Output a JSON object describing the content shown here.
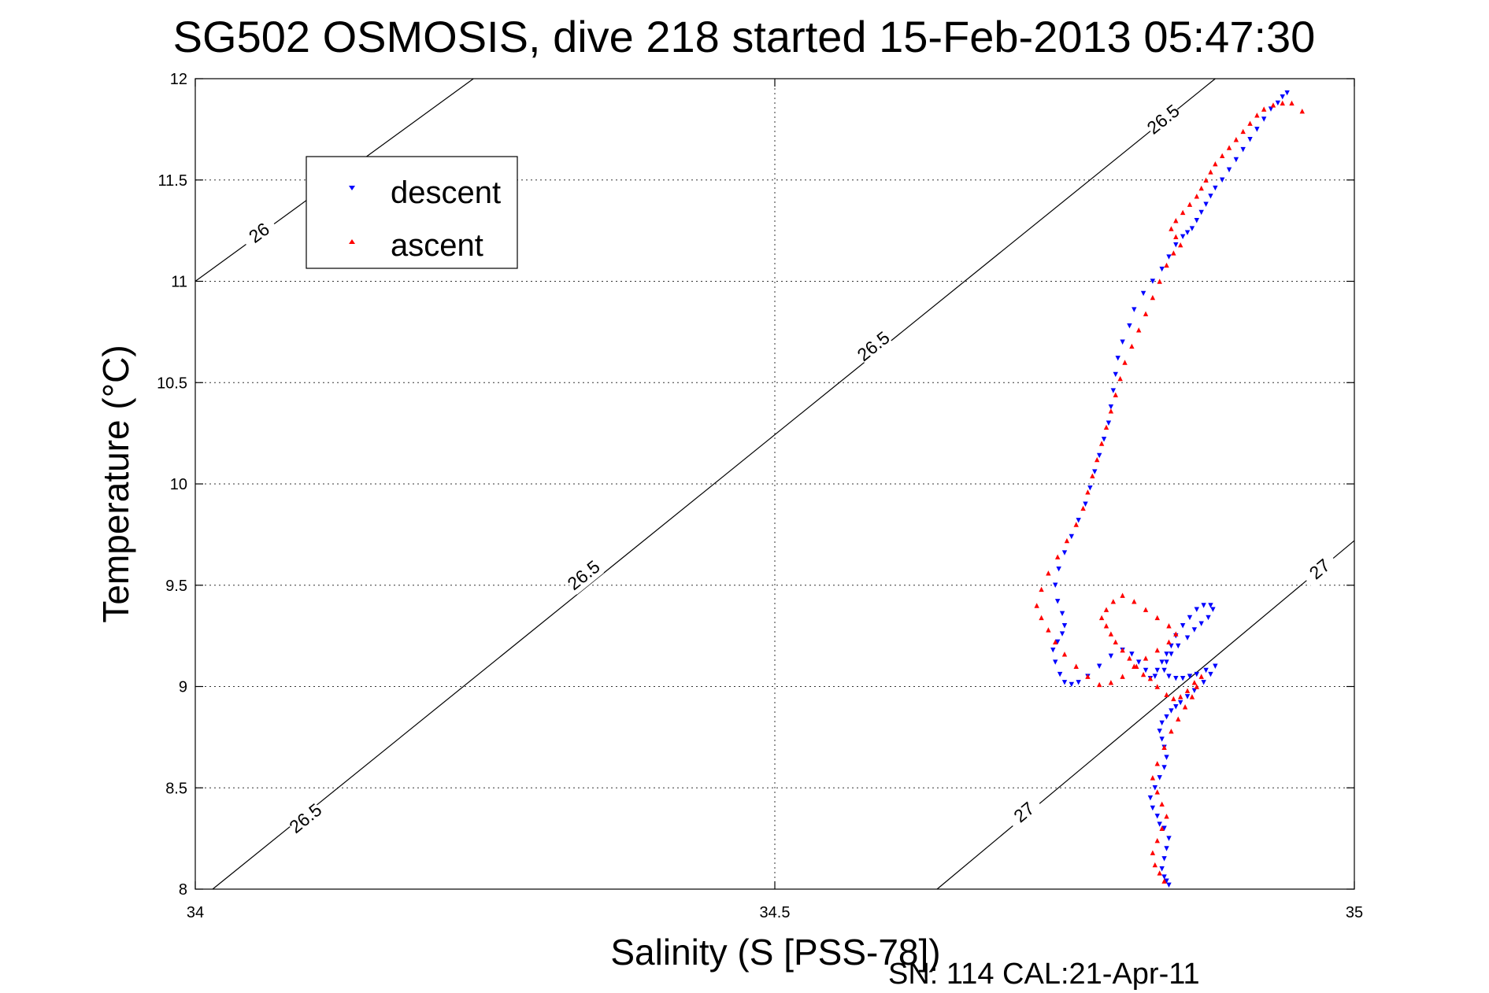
{
  "chart_data": {
    "type": "scatter",
    "title": "SG502 OSMOSIS, dive 218 started 15-Feb-2013 05:47:30",
    "xlabel": "Salinity (S [PSS-78])",
    "ylabel": "Temperature (°C)",
    "footer": "SN: 114  CAL:21-Apr-11",
    "xlim": [
      34,
      35
    ],
    "ylim": [
      8,
      12
    ],
    "xticks": [
      "34",
      "34.5",
      "35"
    ],
    "yticks": [
      "8",
      "8.5",
      "9",
      "9.5",
      "10",
      "10.5",
      "11",
      "11.5",
      "12"
    ],
    "grid": true,
    "legend": {
      "placement": "top-left",
      "entries": [
        {
          "label": "descent",
          "color": "#0000ff",
          "marker": "triangle-down"
        },
        {
          "label": "ascent",
          "color": "#ff0000",
          "marker": "triangle-up"
        }
      ]
    },
    "contours": [
      {
        "level": "26",
        "points": [
          [
            34.0,
            11.0
          ],
          [
            34.24,
            12.0
          ]
        ],
        "labels": [
          {
            "x": 34.055,
            "y": 11.24
          }
        ]
      },
      {
        "level": "26.5",
        "points": [
          [
            34.015,
            8.0
          ],
          [
            34.88,
            12.0
          ]
        ],
        "labels": [
          {
            "x": 34.095,
            "y": 8.35
          },
          {
            "x": 34.335,
            "y": 9.55
          },
          {
            "x": 34.585,
            "y": 10.68
          },
          {
            "x": 34.835,
            "y": 11.8
          }
        ]
      },
      {
        "level": "27",
        "points": [
          [
            34.64,
            8.0
          ],
          [
            35.0,
            9.72
          ]
        ],
        "labels": [
          {
            "x": 34.715,
            "y": 8.38
          },
          {
            "x": 34.97,
            "y": 9.58
          }
        ]
      }
    ],
    "series": [
      {
        "name": "descent",
        "color": "#0000ff",
        "marker": "triangle-down",
        "x": [
          34.84,
          34.838,
          34.836,
          34.834,
          34.836,
          34.838,
          34.84,
          34.836,
          34.832,
          34.83,
          34.826,
          34.824,
          34.828,
          34.832,
          34.836,
          34.838,
          34.836,
          34.834,
          34.832,
          34.834,
          34.838,
          34.842,
          34.846,
          34.85,
          34.856,
          34.862,
          34.87,
          34.876,
          34.88,
          34.872,
          34.864,
          34.858,
          34.852,
          34.846,
          34.84,
          34.836,
          34.838,
          34.842,
          34.848,
          34.856,
          34.862,
          34.868,
          34.874,
          34.878,
          34.876,
          34.87,
          34.864,
          34.858,
          34.852,
          34.846,
          34.842,
          34.838,
          34.834,
          34.83,
          34.828,
          34.824,
          34.82,
          34.814,
          34.808,
          34.8,
          34.79,
          34.78,
          34.77,
          34.762,
          34.756,
          34.75,
          34.746,
          34.742,
          34.74,
          34.744,
          34.748,
          34.75,
          34.748,
          34.744,
          34.742,
          34.745,
          34.75,
          34.756,
          34.762,
          34.768,
          34.772,
          34.776,
          34.78,
          34.784,
          34.788,
          34.79,
          34.792,
          34.794,
          34.796,
          34.8,
          34.806,
          34.81,
          34.818,
          34.826,
          34.834,
          34.84,
          34.846,
          34.852,
          34.856,
          34.86,
          34.864,
          34.868,
          34.872,
          34.876,
          34.88,
          34.886,
          34.892,
          34.898,
          34.904,
          34.91,
          34.916,
          34.922,
          34.928,
          34.934,
          34.938,
          34.942
        ],
        "y": [
          8.02,
          8.04,
          8.06,
          8.1,
          8.15,
          8.2,
          8.25,
          8.3,
          8.32,
          8.36,
          8.4,
          8.45,
          8.5,
          8.55,
          8.6,
          8.65,
          8.7,
          8.74,
          8.78,
          8.82,
          8.85,
          8.88,
          8.9,
          8.92,
          8.95,
          8.98,
          9.02,
          9.06,
          9.1,
          9.08,
          9.06,
          9.05,
          9.04,
          9.04,
          9.05,
          9.08,
          9.12,
          9.16,
          9.2,
          9.24,
          9.28,
          9.31,
          9.34,
          9.38,
          9.4,
          9.4,
          9.38,
          9.34,
          9.3,
          9.25,
          9.2,
          9.16,
          9.12,
          9.08,
          9.05,
          9.04,
          9.08,
          9.12,
          9.16,
          9.18,
          9.15,
          9.1,
          9.05,
          9.02,
          9.01,
          9.02,
          9.06,
          9.12,
          9.18,
          9.22,
          9.26,
          9.3,
          9.36,
          9.42,
          9.5,
          9.58,
          9.66,
          9.74,
          9.82,
          9.9,
          9.98,
          10.06,
          10.14,
          10.22,
          10.3,
          10.38,
          10.46,
          10.54,
          10.62,
          10.7,
          10.78,
          10.86,
          10.94,
          11.0,
          11.06,
          11.12,
          11.18,
          11.22,
          11.24,
          11.26,
          11.3,
          11.34,
          11.38,
          11.42,
          11.46,
          11.5,
          11.55,
          11.6,
          11.65,
          11.7,
          11.75,
          11.8,
          11.85,
          11.88,
          11.91,
          11.93
        ]
      },
      {
        "name": "ascent",
        "color": "#ff0000",
        "marker": "triangle-up",
        "x": [
          34.836,
          34.832,
          34.828,
          34.826,
          34.83,
          34.834,
          34.838,
          34.834,
          34.83,
          34.826,
          34.83,
          34.836,
          34.842,
          34.848,
          34.854,
          34.86,
          34.864,
          34.868,
          34.862,
          34.856,
          34.85,
          34.844,
          34.838,
          34.83,
          34.824,
          34.818,
          34.812,
          34.806,
          34.8,
          34.794,
          34.79,
          34.786,
          34.782,
          34.786,
          34.792,
          34.8,
          34.81,
          34.82,
          34.83,
          34.84,
          34.846,
          34.84,
          34.83,
          34.82,
          34.81,
          34.8,
          34.79,
          34.78,
          34.77,
          34.76,
          34.75,
          34.742,
          34.736,
          34.73,
          34.726,
          34.73,
          34.736,
          34.744,
          34.752,
          34.76,
          34.766,
          34.77,
          34.774,
          34.778,
          34.782,
          34.786,
          34.79,
          34.794,
          34.798,
          34.802,
          34.808,
          34.814,
          34.82,
          34.826,
          34.832,
          34.838,
          34.844,
          34.85,
          34.846,
          34.842,
          34.846,
          34.852,
          34.858,
          34.864,
          34.868,
          34.872,
          34.876,
          34.88,
          34.886,
          34.892,
          34.898,
          34.904,
          34.91,
          34.916,
          34.922,
          34.93,
          34.938,
          34.946,
          34.955
        ],
        "y": [
          8.04,
          8.08,
          8.12,
          8.18,
          8.24,
          8.3,
          8.36,
          8.42,
          8.48,
          8.55,
          8.62,
          8.7,
          8.78,
          8.84,
          8.9,
          8.95,
          9.0,
          9.05,
          9.02,
          8.98,
          8.95,
          8.94,
          8.96,
          9.0,
          9.04,
          9.06,
          9.1,
          9.14,
          9.18,
          9.22,
          9.26,
          9.3,
          9.34,
          9.38,
          9.42,
          9.45,
          9.42,
          9.38,
          9.34,
          9.3,
          9.26,
          9.22,
          9.18,
          9.14,
          9.1,
          9.05,
          9.02,
          9.01,
          9.05,
          9.1,
          9.16,
          9.22,
          9.28,
          9.34,
          9.4,
          9.48,
          9.56,
          9.64,
          9.72,
          9.8,
          9.88,
          9.96,
          10.04,
          10.12,
          10.2,
          10.28,
          10.36,
          10.44,
          10.52,
          10.6,
          10.68,
          10.76,
          10.84,
          10.92,
          11.0,
          11.08,
          11.14,
          11.18,
          11.22,
          11.26,
          11.3,
          11.34,
          11.38,
          11.42,
          11.46,
          11.5,
          11.54,
          11.58,
          11.62,
          11.66,
          11.7,
          11.74,
          11.78,
          11.82,
          11.85,
          11.87,
          11.88,
          11.88,
          11.84
        ]
      }
    ]
  }
}
